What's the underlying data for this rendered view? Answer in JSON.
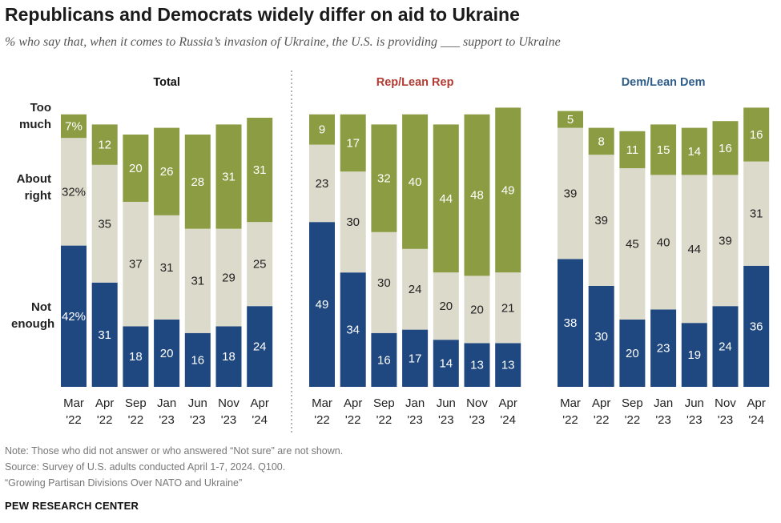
{
  "title": "Republicans and Democrats widely differ on aid to Ukraine",
  "subtitle": "% who say that, when it comes to Russia’s invasion of Ukraine, the U.S. is providing ___ support to Ukraine",
  "categories_legend": {
    "too_much": [
      "Too",
      "much"
    ],
    "about_right": [
      "About",
      "right"
    ],
    "not_enough": [
      "Not",
      "enough"
    ]
  },
  "colors": {
    "too_much": "#8c9c43",
    "about_right": "#dcdacb",
    "not_enough": "#1f4780",
    "panel_rep": "#b23b33",
    "panel_dem": "#2f5d8a",
    "panel_total": "#111111"
  },
  "chart_data": {
    "type": "bar",
    "stacked": true,
    "x_labels": [
      [
        "Mar",
        "'22"
      ],
      [
        "Apr",
        "'22"
      ],
      [
        "Sep",
        "'22"
      ],
      [
        "Jan",
        "'23"
      ],
      [
        "Jun",
        "'23"
      ],
      [
        "Nov",
        "'23"
      ],
      [
        "Apr",
        "'24"
      ]
    ],
    "series_order": [
      "Not enough",
      "About right",
      "Too much"
    ],
    "panels": [
      {
        "name": "Total",
        "not_enough": [
          42,
          31,
          18,
          20,
          16,
          18,
          24
        ],
        "about_right": [
          32,
          35,
          37,
          31,
          31,
          29,
          25
        ],
        "too_much": [
          7,
          12,
          20,
          26,
          28,
          31,
          31
        ],
        "first_bar_pct_labels": true
      },
      {
        "name": "Rep/Lean Rep",
        "not_enough": [
          49,
          34,
          16,
          17,
          14,
          13,
          13
        ],
        "about_right": [
          23,
          30,
          30,
          24,
          20,
          20,
          21
        ],
        "too_much": [
          9,
          17,
          32,
          40,
          44,
          48,
          49
        ]
      },
      {
        "name": "Dem/Lean Dem",
        "not_enough": [
          38,
          30,
          20,
          23,
          19,
          24,
          36
        ],
        "about_right": [
          39,
          39,
          45,
          40,
          44,
          39,
          31
        ],
        "too_much": [
          5,
          8,
          11,
          15,
          14,
          16,
          16
        ]
      }
    ],
    "ylim": [
      0,
      100
    ]
  },
  "notes": [
    "Note: Those who did not answer or who answered “Not sure” are not shown.",
    "Source: Survey of U.S. adults conducted April 1-7, 2024. Q100.",
    "“Growing Partisan Divisions Over NATO and Ukraine”"
  ],
  "brand": "PEW RESEARCH CENTER"
}
